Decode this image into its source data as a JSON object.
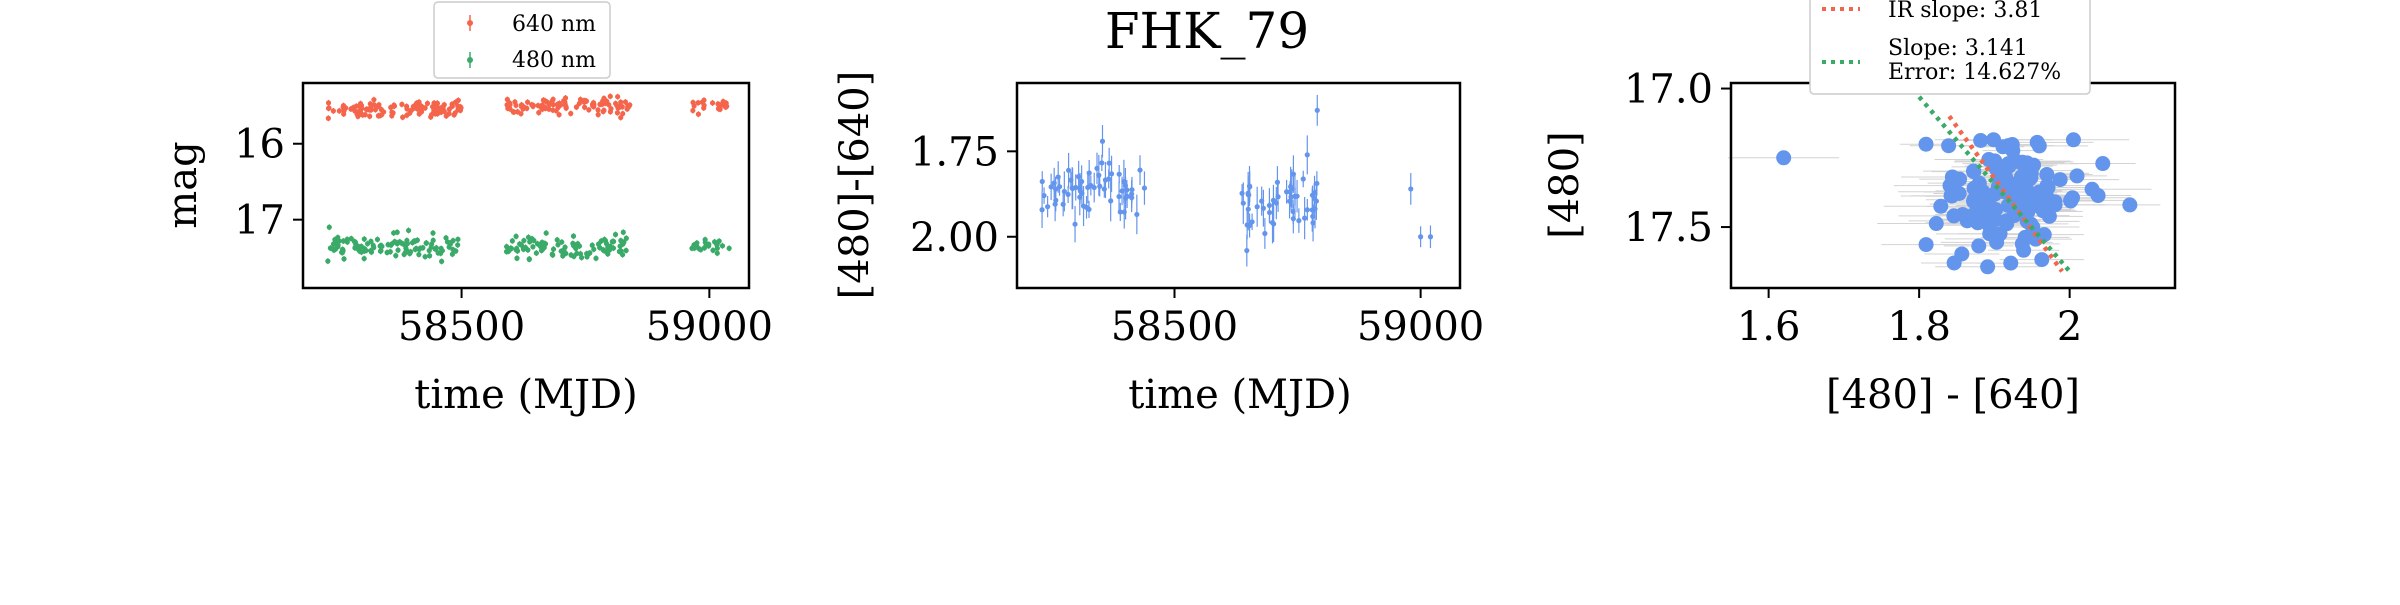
{
  "figure_title": "FHK_79",
  "colors": {
    "red": "#f4654c",
    "green": "#3aaa68",
    "blue": "#6495ed",
    "errorbar_grey": "#d3d3d3"
  },
  "chart_data": [
    {
      "type": "scatter",
      "panel": "lightcurve",
      "xlabel": "time (MJD)",
      "ylabel": "mag",
      "y_inverted": true,
      "xlim": [
        58180,
        59080
      ],
      "ylim": [
        17.9,
        15.2
      ],
      "xticks": [
        58500,
        59000
      ],
      "yticks": [
        16,
        17
      ],
      "legend": {
        "placement": "above",
        "entries": [
          "640 nm",
          "480 nm"
        ]
      },
      "series": [
        {
          "name": "640 nm",
          "color": "#f4654c",
          "segments": [
            {
              "x_range": [
                58230,
                58500
              ],
              "y_center": 15.55,
              "y_spread": 0.09,
              "count": 110
            },
            {
              "x_range": [
                58590,
                58840
              ],
              "y_center": 15.5,
              "y_spread": 0.09,
              "count": 100
            },
            {
              "x_range": [
                58960,
                59040
              ],
              "y_center": 15.5,
              "y_spread": 0.07,
              "count": 22
            }
          ]
        },
        {
          "name": "480 nm",
          "color": "#3aaa68",
          "segments": [
            {
              "x_range": [
                58230,
                58500
              ],
              "y_center": 17.35,
              "y_spread": 0.12,
              "count": 110
            },
            {
              "x_range": [
                58590,
                58840
              ],
              "y_center": 17.35,
              "y_spread": 0.12,
              "count": 100
            },
            {
              "x_range": [
                58960,
                59040
              ],
              "y_center": 17.35,
              "y_spread": 0.08,
              "count": 22
            }
          ]
        }
      ]
    },
    {
      "type": "scatter",
      "panel": "color_curve",
      "xlabel": "time (MJD)",
      "ylabel": "[480]-[640]",
      "y_inverted": true,
      "xlim": [
        58180,
        59080
      ],
      "ylim": [
        2.15,
        1.55
      ],
      "xticks": [
        58500,
        59000
      ],
      "yticks": [
        1.75,
        2.0
      ],
      "series": [
        {
          "name": "",
          "color": "#6495ed",
          "segments": [
            {
              "x_range": [
                58230,
                58440
              ],
              "y_center": 1.86,
              "y_spread": 0.07,
              "count": 60
            },
            {
              "x_range": [
                58630,
                58790
              ],
              "y_center": 1.89,
              "y_spread": 0.07,
              "count": 50
            }
          ],
          "extra_points": [
            [
              58790,
              1.63
            ],
            [
              58980,
              1.86
            ],
            [
              59000,
              2.0
            ],
            [
              59020,
              2.0
            ],
            [
              58330,
              1.85
            ]
          ]
        }
      ]
    },
    {
      "type": "scatter",
      "panel": "color_magnitude",
      "xlabel": "[480] - [640]",
      "ylabel": "[480]",
      "y_inverted": true,
      "xlim": [
        1.55,
        2.14
      ],
      "ylim": [
        17.72,
        16.98
      ],
      "xticks": [
        1.6,
        1.8,
        2.0
      ],
      "yticks": [
        17.0,
        17.5
      ],
      "series": [
        {
          "name": "",
          "color": "#6495ed",
          "cloud": {
            "x_center": 1.91,
            "y_center": 17.38,
            "x_spread": 0.06,
            "y_spread": 0.14,
            "count": 150
          },
          "extra_points": [
            [
              1.62,
              17.25
            ],
            [
              2.08,
              17.42
            ]
          ]
        }
      ],
      "lines": [
        {
          "label": "IR slope: 3.81",
          "color": "#f4654c",
          "x": [
            1.84,
            1.99
          ],
          "y": [
            17.1,
            17.66
          ]
        },
        {
          "label": "Slope: 3.141",
          "label2": "Error: 14.627%",
          "color": "#3aaa68",
          "x": [
            1.8,
            2.0
          ],
          "y": [
            17.03,
            17.66
          ]
        }
      ],
      "legend": {
        "placement": "above",
        "entries": [
          "IR slope: 3.81",
          "Slope: 3.141\nError: 14.627%"
        ]
      }
    }
  ]
}
